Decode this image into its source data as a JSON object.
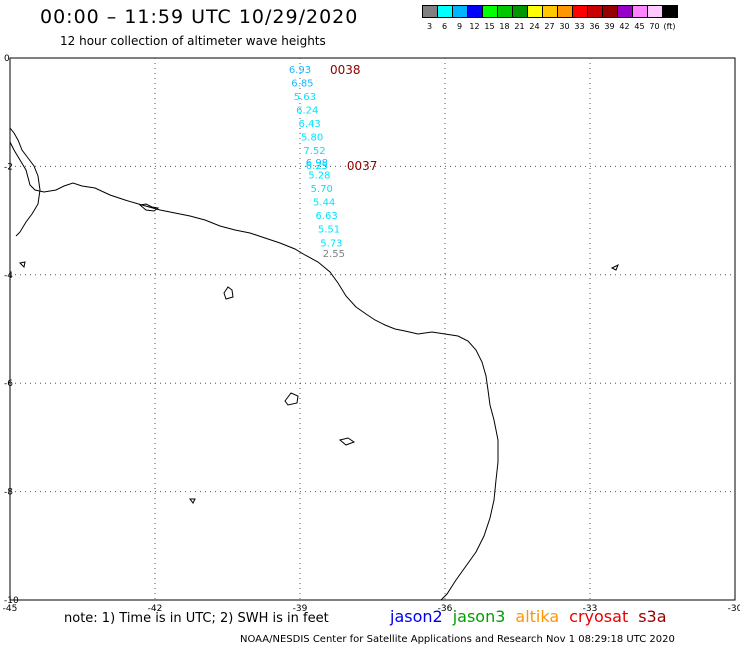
{
  "title": "00:00 – 11:59 UTC 10/29/2020",
  "subtitle": "12 hour collection of altimeter wave heights",
  "color_scale": {
    "colors": [
      "#808080",
      "#00ffff",
      "#00b4ff",
      "#0000ff",
      "#00ff00",
      "#00c800",
      "#009600",
      "#ffff00",
      "#ffc800",
      "#ff9600",
      "#ff0000",
      "#c80000",
      "#960000",
      "#9600c8",
      "#ff82ff",
      "#ffc8ff",
      "#000000"
    ],
    "labels": [
      "3",
      "6",
      "9",
      "12",
      "15",
      "18",
      "21",
      "24",
      "27",
      "30",
      "33",
      "36",
      "39",
      "42",
      "45",
      "70",
      "(ft)"
    ]
  },
  "map": {
    "lon_range": [
      -45,
      -30
    ],
    "lat_range": [
      -10,
      0
    ],
    "x_ticks": [
      "-45",
      "-42",
      "-39",
      "-36",
      "-33",
      "-30"
    ],
    "y_ticks": [
      "0",
      "-2",
      "-4",
      "-6",
      "-8",
      "-10"
    ],
    "grid": "dotted",
    "tracks": [
      {
        "id": "0038",
        "id_color": "#8b0000",
        "points": [
          {
            "lon": -39.0,
            "lat": -0.2,
            "value": "6.93",
            "color": "#1eb4ff"
          },
          {
            "lon": -38.95,
            "lat": -0.45,
            "value": "6.85",
            "color": "#1eb4ff"
          },
          {
            "lon": -38.9,
            "lat": -0.7,
            "value": "5.63",
            "color": "#00e5ff"
          },
          {
            "lon": -38.85,
            "lat": -0.95,
            "value": "6.24",
            "color": "#00e5ff"
          },
          {
            "lon": -38.8,
            "lat": -1.2,
            "value": "6.43",
            "color": "#00e5ff"
          },
          {
            "lon": -38.75,
            "lat": -1.45,
            "value": "5.80",
            "color": "#00e5ff"
          },
          {
            "lon": -38.7,
            "lat": -1.7,
            "value": "7.52",
            "color": "#00e5ff"
          },
          {
            "lon": -38.65,
            "lat": -1.92,
            "value": "6.98",
            "color": "#1eb4ff"
          }
        ]
      },
      {
        "id": "0037",
        "id_color": "#8b0000",
        "points": [
          {
            "lon": -38.65,
            "lat": -1.97,
            "value": "6.25",
            "color": "#00e5ff"
          },
          {
            "lon": -38.6,
            "lat": -2.15,
            "value": "5.28",
            "color": "#00e5ff"
          },
          {
            "lon": -38.55,
            "lat": -2.4,
            "value": "5.70",
            "color": "#00e5ff"
          },
          {
            "lon": -38.5,
            "lat": -2.65,
            "value": "5.44",
            "color": "#00e5ff"
          },
          {
            "lon": -38.45,
            "lat": -2.9,
            "value": "6.63",
            "color": "#00e5ff"
          },
          {
            "lon": -38.4,
            "lat": -3.15,
            "value": "5.51",
            "color": "#00e5ff"
          },
          {
            "lon": -38.35,
            "lat": -3.4,
            "value": "5.73",
            "color": "#00e5ff"
          },
          {
            "lon": -38.3,
            "lat": -3.6,
            "value": "2.55",
            "color": "#808080"
          }
        ]
      }
    ]
  },
  "note": "note:  1) Time is in UTC;  2) SWH is in feet",
  "satellites": [
    {
      "name": "jason2",
      "color": "#0000e6"
    },
    {
      "name": "jason3",
      "color": "#00a000"
    },
    {
      "name": "altika",
      "color": "#ff9600"
    },
    {
      "name": "cryosat",
      "color": "#e60000"
    },
    {
      "name": "s3a",
      "color": "#960000"
    }
  ],
  "footer": "NOAA/NESDIS Center for Satellite Applications and Research     Nov  1 08:29:18 UTC 2020"
}
